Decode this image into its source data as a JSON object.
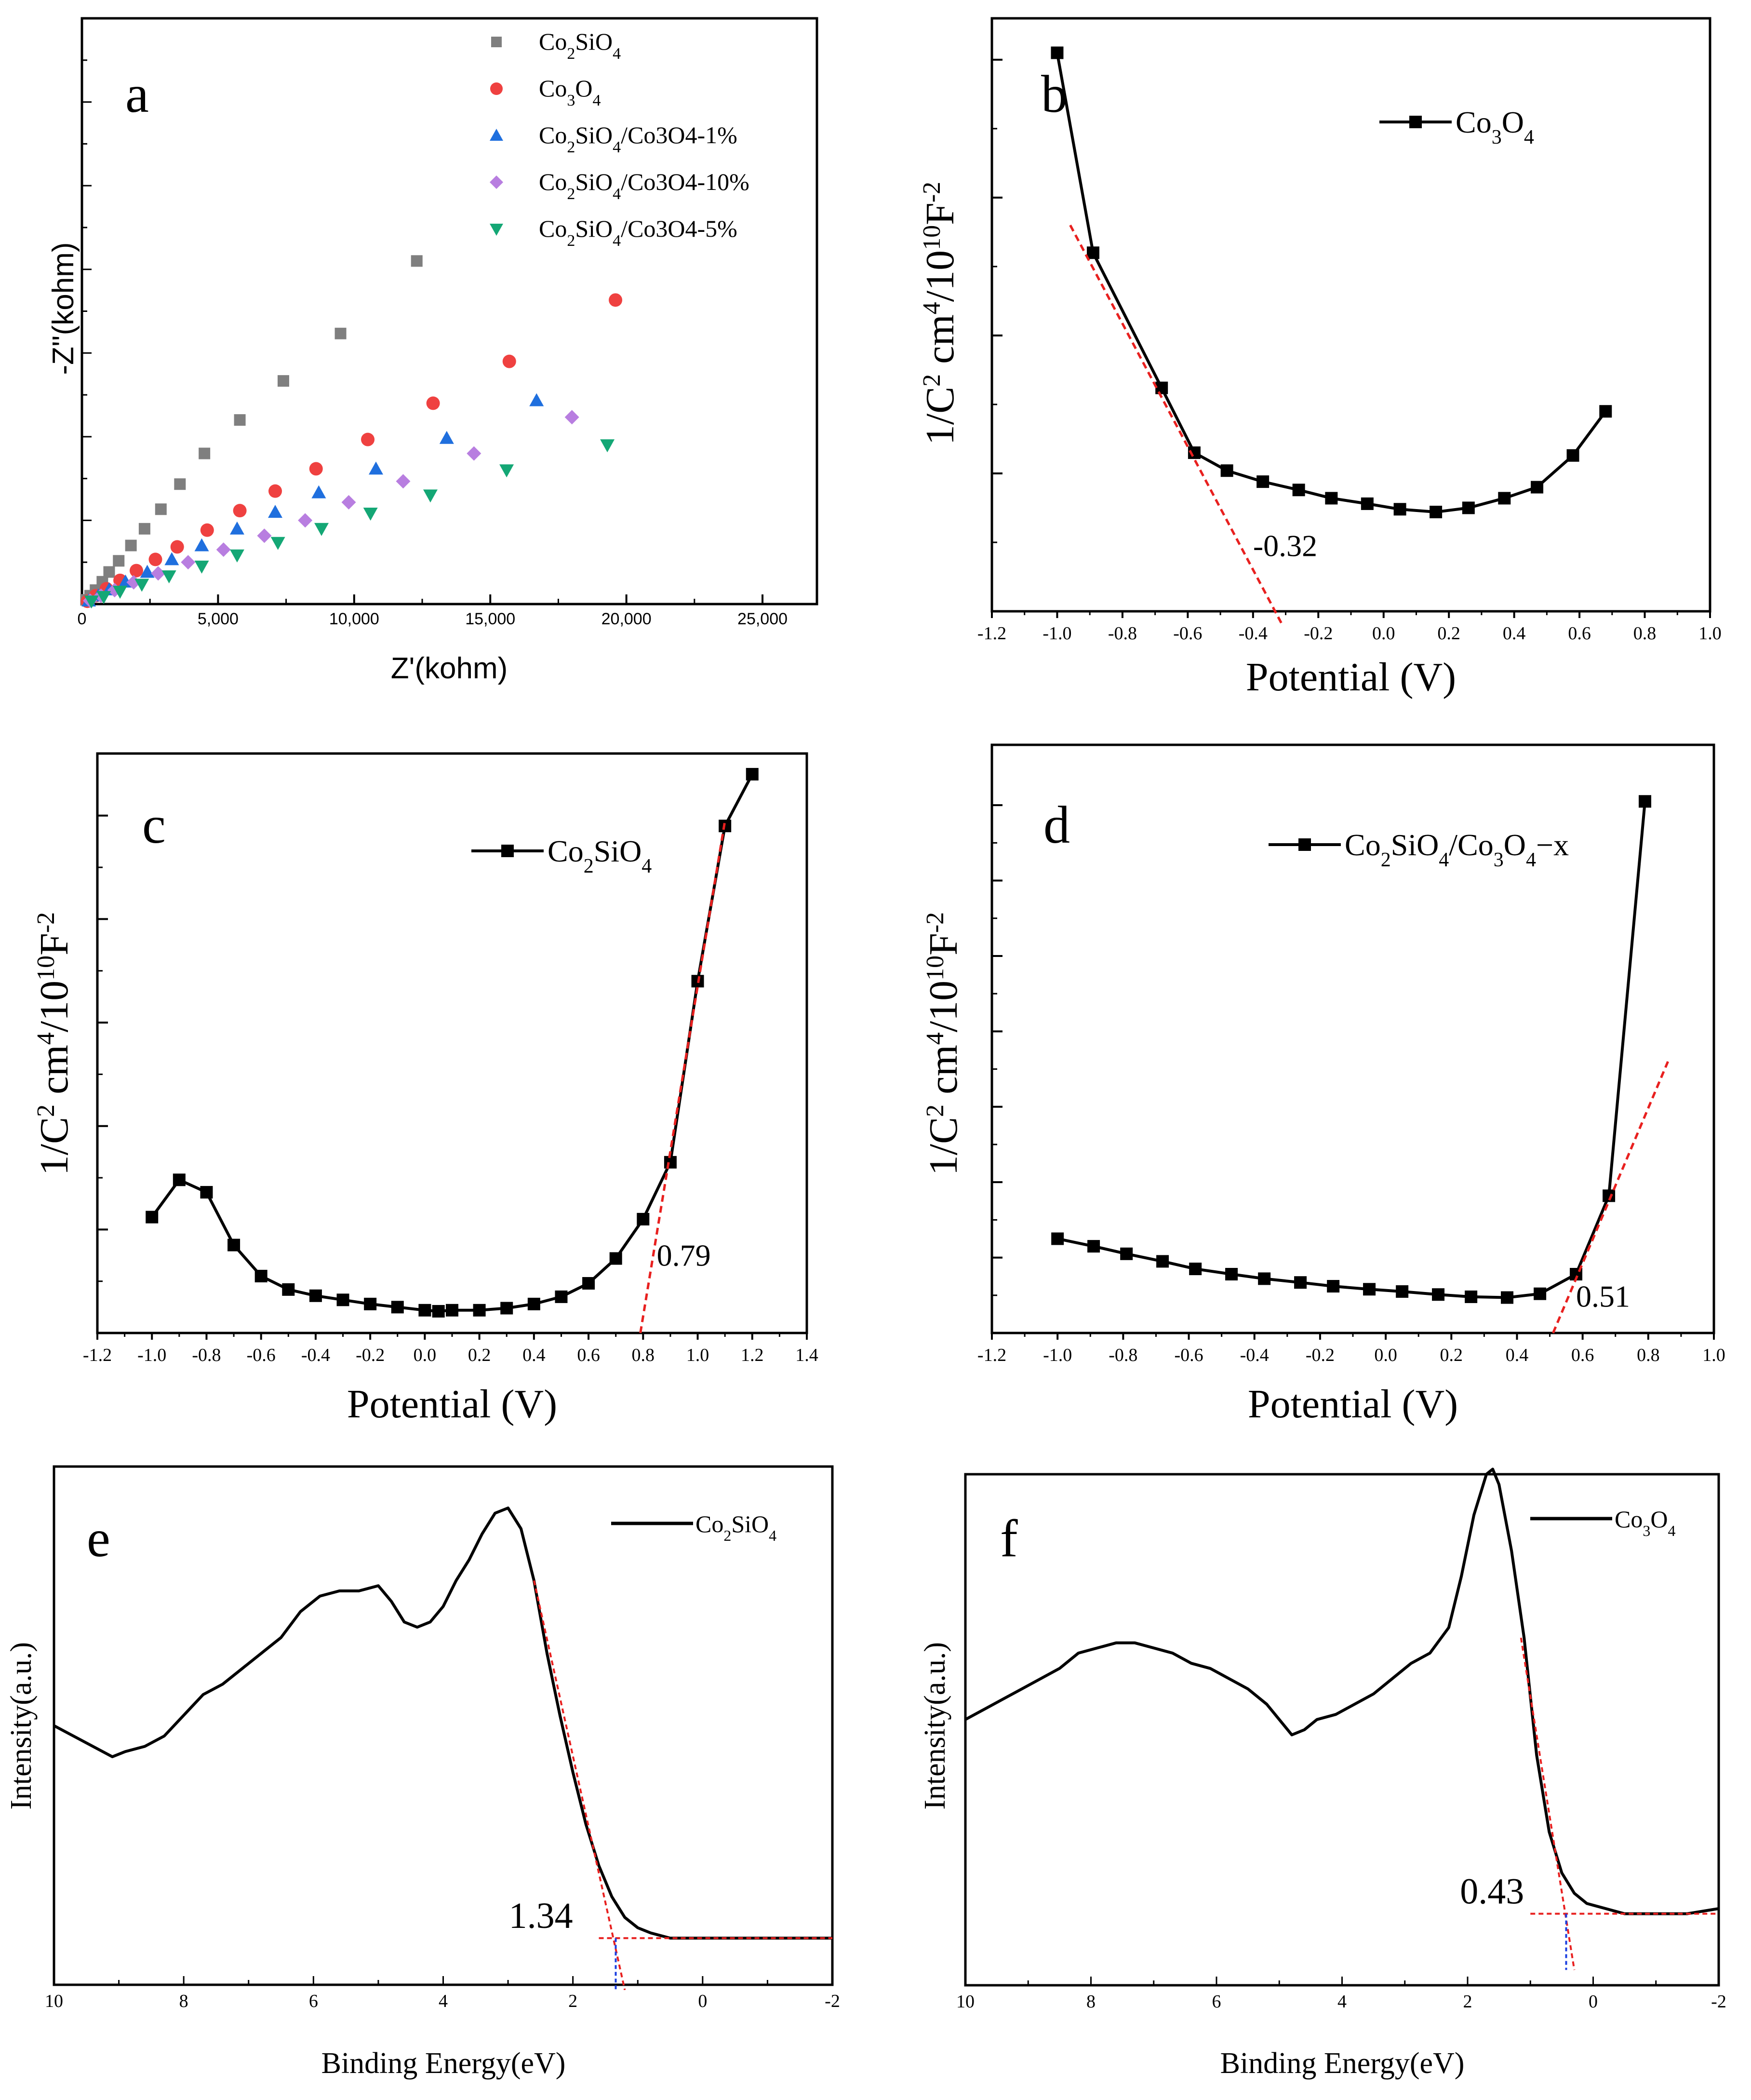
{
  "chart_data": [
    {
      "id": "a",
      "type": "scatter",
      "panel_label": "a",
      "xlabel": "Z'(kohm)",
      "ylabel": "-Z''(kohm)",
      "xlim": [
        0,
        27000
      ],
      "ylim": [
        0,
        21000
      ],
      "xticks": [
        0,
        5000,
        10000,
        15000,
        20000,
        25000
      ],
      "xtick_labels": [
        "0",
        "5,000",
        "10,000",
        "15,000",
        "20,000",
        "25,000"
      ],
      "legend_position": "top-center",
      "series": [
        {
          "name": "Co2SiO4",
          "legend_html": "Co<tspan baseline-shift=\"sub\" font-size=\"34\">2</tspan>SiO<tspan baseline-shift=\"sub\" font-size=\"34\">4</tspan>",
          "color": "#7f7f7f",
          "marker": "square",
          "x": [
            150,
            300,
            500,
            750,
            1000,
            1350,
            1800,
            2300,
            2900,
            3600,
            4500,
            5800,
            7400,
            9500,
            12300
          ],
          "y": [
            150,
            300,
            500,
            800,
            1150,
            1550,
            2100,
            2700,
            3400,
            4300,
            5400,
            6600,
            8000,
            9700,
            12300
          ]
        },
        {
          "name": "Co3O4",
          "legend_html": "Co<tspan baseline-shift=\"sub\" font-size=\"34\">3</tspan>O<tspan baseline-shift=\"sub\" font-size=\"34\">4</tspan>",
          "color": "#ef4140",
          "marker": "circle",
          "x": [
            200,
            500,
            900,
            1400,
            2000,
            2700,
            3500,
            4600,
            5800,
            7100,
            8600,
            10500,
            12900,
            15700,
            19600
          ],
          "y": [
            100,
            300,
            550,
            850,
            1200,
            1600,
            2050,
            2650,
            3350,
            4050,
            4850,
            5900,
            7200,
            8700,
            10900
          ]
        },
        {
          "name": "Co2SiO4/Co3O4-1%",
          "legend_html": "Co<tspan baseline-shift=\"sub\" font-size=\"34\">2</tspan>SiO<tspan baseline-shift=\"sub\" font-size=\"34\">4</tspan>/Co3O4-1%",
          "color": "#1f6fde",
          "marker": "triangle-up",
          "x": [
            250,
            600,
            1000,
            1600,
            2400,
            3300,
            4400,
            5700,
            7100,
            8700,
            10800,
            13400,
            16700
          ],
          "y": [
            120,
            300,
            520,
            800,
            1150,
            1600,
            2100,
            2700,
            3300,
            4000,
            4850,
            5950,
            7300
          ]
        },
        {
          "name": "Co2SiO4/Co3O4-10%",
          "legend_html": "Co<tspan baseline-shift=\"sub\" font-size=\"34\">2</tspan>SiO<tspan baseline-shift=\"sub\" font-size=\"34\">4</tspan>/Co3O4-10%",
          "color": "#b87ee0",
          "marker": "diamond",
          "x": [
            300,
            700,
            1200,
            1900,
            2800,
            3900,
            5200,
            6700,
            8200,
            9800,
            11800,
            14400,
            18000
          ],
          "y": [
            120,
            300,
            500,
            780,
            1100,
            1500,
            1950,
            2450,
            3000,
            3650,
            4400,
            5400,
            6700
          ]
        },
        {
          "name": "Co2SiO4/Co3O4-5%",
          "legend_html": "Co<tspan baseline-shift=\"sub\" font-size=\"34\">2</tspan>SiO<tspan baseline-shift=\"sub\" font-size=\"34\">4</tspan>/Co3O4-5%",
          "color": "#14a775",
          "marker": "triangle-down",
          "x": [
            350,
            800,
            1400,
            2200,
            3200,
            4400,
            5700,
            7200,
            8800,
            10600,
            12800,
            15600,
            19300
          ],
          "y": [
            100,
            260,
            450,
            700,
            1000,
            1350,
            1750,
            2200,
            2700,
            3250,
            3900,
            4800,
            5700
          ]
        }
      ]
    },
    {
      "id": "b",
      "type": "line",
      "panel_label": "b",
      "xlabel": "Potential (V)",
      "ylabel_html": "1/C<tspan baseline-shift=\"super\" font-size=\"52\">2</tspan> cm<tspan baseline-shift=\"super\" font-size=\"52\">4</tspan>/10<tspan baseline-shift=\"super\" font-size=\"52\">10</tspan>F<tspan baseline-shift=\"super\" font-size=\"52\">-2</tspan>",
      "xlim": [
        -1.2,
        1.0
      ],
      "ylim": [
        0,
        4.3
      ],
      "xticks": [
        -1.2,
        -1.0,
        -0.8,
        -0.6,
        -0.4,
        -0.2,
        0.0,
        0.2,
        0.4,
        0.6,
        0.8,
        1.0
      ],
      "xtick_labels": [
        "-1.2",
        "-1.0",
        "-0.8",
        "-0.6",
        "-0.4",
        "-0.2",
        "0.0",
        "0.2",
        "0.4",
        "0.6",
        "0.8",
        "1.0"
      ],
      "yticks": [
        1,
        2,
        3,
        4
      ],
      "series": [
        {
          "name": "Co3O4",
          "legend_html": "Co<tspan baseline-shift=\"sub\" font-size=\"42\">3</tspan>O<tspan baseline-shift=\"sub\" font-size=\"42\">4</tspan>",
          "x": [
            -1.0,
            -0.89,
            -0.68,
            -0.58,
            -0.48,
            -0.37,
            -0.26,
            -0.16,
            -0.05,
            0.05,
            0.16,
            0.26,
            0.37,
            0.47,
            0.58,
            0.68
          ],
          "y": [
            4.05,
            2.6,
            1.62,
            1.15,
            1.02,
            0.94,
            0.88,
            0.82,
            0.78,
            0.74,
            0.72,
            0.75,
            0.82,
            0.9,
            1.13,
            1.45
          ]
        }
      ],
      "fit_line": {
        "x": [
          -0.96,
          -0.31
        ],
        "y": [
          2.8,
          -0.1
        ]
      },
      "annotation": "-0.32",
      "annotation_xy": [
        -0.4,
        0.4
      ]
    },
    {
      "id": "c",
      "type": "line",
      "panel_label": "c",
      "xlabel": "Potential (V)",
      "ylabel_html": "1/C<tspan baseline-shift=\"super\" font-size=\"52\">2</tspan> cm<tspan baseline-shift=\"super\" font-size=\"52\">4</tspan>/10<tspan baseline-shift=\"super\" font-size=\"52\">10</tspan>F<tspan baseline-shift=\"super\" font-size=\"52\">-2</tspan>",
      "xlim": [
        -1.2,
        1.4
      ],
      "ylim": [
        0,
        5.6
      ],
      "xticks": [
        -1.2,
        -1.0,
        -0.8,
        -0.6,
        -0.4,
        -0.2,
        0.0,
        0.2,
        0.4,
        0.6,
        0.8,
        1.0,
        1.2,
        1.4
      ],
      "xtick_labels": [
        "-1.2",
        "-1.0",
        "-0.8",
        "-0.6",
        "-0.4",
        "-0.2",
        "0.0",
        "0.2",
        "0.4",
        "0.6",
        "0.8",
        "1.0",
        "1.2",
        "1.4"
      ],
      "yticks": [
        1,
        2,
        3,
        4,
        5
      ],
      "series": [
        {
          "name": "Co2SiO4",
          "legend_html": "Co<tspan baseline-shift=\"sub\" font-size=\"42\">2</tspan>SiO<tspan baseline-shift=\"sub\" font-size=\"42\">4</tspan>",
          "x": [
            -1.0,
            -0.9,
            -0.8,
            -0.7,
            -0.6,
            -0.5,
            -0.4,
            -0.3,
            -0.2,
            -0.1,
            0.0,
            0.05,
            0.1,
            0.2,
            0.3,
            0.4,
            0.5,
            0.6,
            0.7,
            0.8,
            0.9,
            1.0,
            1.1,
            1.2
          ],
          "y": [
            1.12,
            1.48,
            1.36,
            0.85,
            0.55,
            0.42,
            0.36,
            0.32,
            0.28,
            0.25,
            0.22,
            0.21,
            0.22,
            0.22,
            0.24,
            0.28,
            0.35,
            0.48,
            0.72,
            1.1,
            1.65,
            3.4,
            4.9,
            5.4
          ]
        }
      ],
      "fit_line": {
        "x": [
          0.79,
          1.1
        ],
        "y": [
          0.0,
          4.95
        ]
      },
      "annotation": "0.79",
      "annotation_xy": [
        0.85,
        0.65
      ]
    },
    {
      "id": "d",
      "type": "line",
      "panel_label": "d",
      "xlabel": "Potential (V)",
      "ylabel_html": "1/C<tspan baseline-shift=\"super\" font-size=\"52\">2</tspan> cm<tspan baseline-shift=\"super\" font-size=\"52\">4</tspan>/10<tspan baseline-shift=\"super\" font-size=\"52\">10</tspan>F<tspan baseline-shift=\"super\" font-size=\"52\">-2</tspan>",
      "xlim": [
        -1.2,
        1.0
      ],
      "ylim": [
        0,
        7.8
      ],
      "xticks": [
        -1.2,
        -1.0,
        -0.8,
        -0.6,
        -0.4,
        -0.2,
        0.0,
        0.2,
        0.4,
        0.6,
        0.8,
        1.0
      ],
      "xtick_labels": [
        "-1.2",
        "-1.0",
        "-0.8",
        "-0.6",
        "-0.4",
        "-0.2",
        "0.0",
        "0.2",
        "0.4",
        "0.6",
        "0.8",
        "1.0"
      ],
      "yticks": [
        1,
        2,
        3,
        4,
        5,
        6,
        7
      ],
      "series": [
        {
          "name": "Co2SiO4/Co3O4-x",
          "legend_html": "Co<tspan baseline-shift=\"sub\" font-size=\"42\">2</tspan>SiO<tspan baseline-shift=\"sub\" font-size=\"42\">4</tspan>/Co<tspan baseline-shift=\"sub\" font-size=\"42\">3</tspan>O<tspan baseline-shift=\"sub\" font-size=\"42\">4</tspan>−x",
          "x": [
            -1.0,
            -0.89,
            -0.79,
            -0.68,
            -0.58,
            -0.47,
            -0.37,
            -0.26,
            -0.16,
            -0.05,
            0.05,
            0.16,
            0.26,
            0.37,
            0.47,
            0.58,
            0.68,
            0.79
          ],
          "y": [
            1.25,
            1.15,
            1.05,
            0.95,
            0.85,
            0.78,
            0.72,
            0.67,
            0.62,
            0.58,
            0.55,
            0.51,
            0.48,
            0.47,
            0.52,
            0.78,
            1.82,
            7.05
          ]
        }
      ],
      "fit_line": {
        "x": [
          0.51,
          0.86
        ],
        "y": [
          0.0,
          3.6
        ]
      },
      "annotation": "0.51",
      "annotation_xy": [
        0.58,
        0.35
      ]
    },
    {
      "id": "e",
      "type": "line",
      "panel_label": "e",
      "xlabel": "Binding Energy(eV)",
      "ylabel": "Intensity(a.u.)",
      "xlim": [
        10,
        -2
      ],
      "ylim": [
        0,
        1.0
      ],
      "xticks": [
        10,
        8,
        6,
        4,
        2,
        0,
        -2
      ],
      "xtick_labels": [
        "10",
        "8",
        "6",
        "4",
        "2",
        "0",
        "-2"
      ],
      "series": [
        {
          "name": "Co2SiO4",
          "legend_html": "Co<tspan baseline-shift=\"sub\" font-size=\"32\">2</tspan>SiO<tspan baseline-shift=\"sub\" font-size=\"32\">4</tspan>",
          "x": [
            10,
            9.7,
            9.4,
            9.1,
            8.9,
            8.6,
            8.3,
            8.0,
            7.7,
            7.4,
            7.1,
            6.8,
            6.5,
            6.2,
            5.9,
            5.6,
            5.3,
            5.0,
            4.8,
            4.6,
            4.4,
            4.2,
            4.0,
            3.8,
            3.6,
            3.4,
            3.2,
            3.0,
            2.8,
            2.6,
            2.4,
            2.2,
            2.0,
            1.8,
            1.6,
            1.4,
            1.2,
            1.0,
            0.8,
            0.5,
            0.2,
            0,
            -0.5,
            -1.0,
            -1.5,
            -2.0
          ],
          "y": [
            0.5,
            0.48,
            0.46,
            0.44,
            0.45,
            0.46,
            0.48,
            0.52,
            0.56,
            0.58,
            0.61,
            0.64,
            0.67,
            0.72,
            0.75,
            0.76,
            0.76,
            0.77,
            0.74,
            0.7,
            0.69,
            0.7,
            0.73,
            0.78,
            0.82,
            0.87,
            0.91,
            0.92,
            0.88,
            0.78,
            0.64,
            0.52,
            0.41,
            0.31,
            0.23,
            0.17,
            0.13,
            0.11,
            0.1,
            0.09,
            0.09,
            0.09,
            0.09,
            0.09,
            0.09,
            0.09
          ]
        }
      ],
      "fit_line": {
        "x": [
          2.6,
          1.2
        ],
        "y": [
          0.78,
          -0.01
        ]
      },
      "baseline": {
        "x": [
          1.6,
          -2.0
        ],
        "y": [
          0.09,
          0.09
        ]
      },
      "vline": {
        "x": 1.34,
        "y": [
          0.09,
          -0.01
        ]
      },
      "annotation": "1.34",
      "annotation_xy": [
        2.0,
        0.11
      ]
    },
    {
      "id": "f",
      "type": "line",
      "panel_label": "f",
      "xlabel": "Binding Energy(eV)",
      "ylabel": "Intensity(a.u.)",
      "xlim": [
        10,
        -2
      ],
      "ylim": [
        0,
        1.0
      ],
      "xticks": [
        10,
        8,
        6,
        4,
        2,
        0,
        -2
      ],
      "xtick_labels": [
        "10",
        "8",
        "6",
        "4",
        "2",
        "0",
        "-2"
      ],
      "series": [
        {
          "name": "Co3O4",
          "legend_html": "Co<tspan baseline-shift=\"sub\" font-size=\"32\">3</tspan>O<tspan baseline-shift=\"sub\" font-size=\"32\">4</tspan>",
          "x": [
            10,
            9.7,
            9.4,
            9.1,
            8.8,
            8.5,
            8.2,
            7.9,
            7.6,
            7.3,
            7.0,
            6.7,
            6.4,
            6.1,
            5.8,
            5.5,
            5.2,
            5.0,
            4.8,
            4.6,
            4.4,
            4.1,
            3.8,
            3.5,
            3.2,
            2.9,
            2.6,
            2.3,
            2.1,
            1.9,
            1.7,
            1.6,
            1.5,
            1.3,
            1.1,
            0.9,
            0.7,
            0.5,
            0.3,
            0.1,
            -0.2,
            -0.5,
            -1.0,
            -1.5,
            -2.0
          ],
          "y": [
            0.52,
            0.54,
            0.56,
            0.58,
            0.6,
            0.62,
            0.65,
            0.66,
            0.67,
            0.67,
            0.66,
            0.65,
            0.63,
            0.62,
            0.6,
            0.58,
            0.55,
            0.52,
            0.49,
            0.5,
            0.52,
            0.53,
            0.55,
            0.57,
            0.6,
            0.63,
            0.65,
            0.7,
            0.8,
            0.92,
            1.0,
            1.01,
            0.98,
            0.85,
            0.68,
            0.45,
            0.3,
            0.22,
            0.18,
            0.16,
            0.15,
            0.14,
            0.14,
            0.14,
            0.15
          ]
        }
      ],
      "fit_line": {
        "x": [
          1.15,
          0.3
        ],
        "y": [
          0.68,
          0.03
        ]
      },
      "baseline": {
        "x": [
          1.0,
          -2.0
        ],
        "y": [
          0.14,
          0.14
        ]
      },
      "vline": {
        "x": 0.43,
        "y": [
          0.14,
          0.03
        ]
      },
      "annotation": "0.43",
      "annotation_xy": [
        1.1,
        0.16
      ]
    }
  ]
}
